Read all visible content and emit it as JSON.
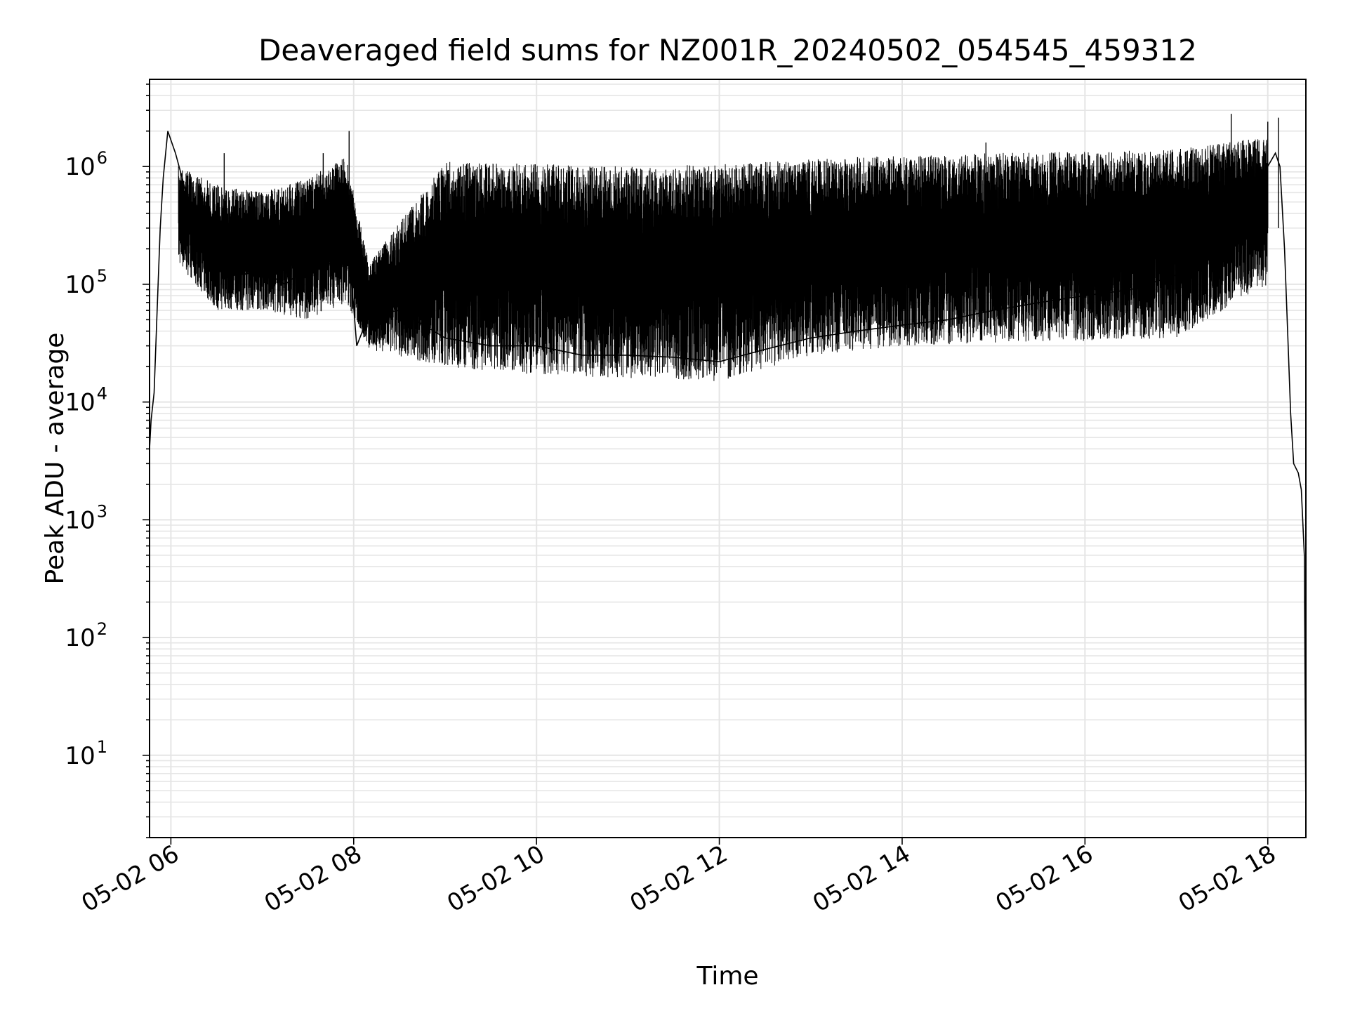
{
  "chart_data": {
    "type": "line",
    "title": "Deaveraged field sums for NZ001R_20240502_054545_459312",
    "xlabel": "Time",
    "ylabel": "Peak ADU - average",
    "yscale": "log",
    "ylim": [
      2,
      5500000
    ],
    "xlim": [
      "05-02 05:46",
      "05-02 18:25"
    ],
    "grid": true,
    "line_color": "#000000",
    "grid_color": "#e5e5e5",
    "x_ticks": [
      "05-02 06",
      "05-02 08",
      "05-02 10",
      "05-02 12",
      "05-02 14",
      "05-02 16",
      "05-02 18"
    ],
    "y_ticks": [
      {
        "value": 10,
        "base": "10",
        "exp": "1"
      },
      {
        "value": 100,
        "base": "10",
        "exp": "2"
      },
      {
        "value": 1000,
        "base": "10",
        "exp": "3"
      },
      {
        "value": 10000,
        "base": "10",
        "exp": "4"
      },
      {
        "value": 100000,
        "base": "10",
        "exp": "5"
      },
      {
        "value": 1000000,
        "base": "10",
        "exp": "6"
      }
    ],
    "series": [
      {
        "points": [
          [
            "05-02 05:46",
            4000
          ],
          [
            "05-02 05:47",
            7000
          ],
          [
            "05-02 05:49",
            12000
          ],
          [
            "05-02 05:51",
            60000
          ],
          [
            "05-02 05:53",
            300000
          ],
          [
            "05-02 05:55",
            800000
          ],
          [
            "05-02 05:58",
            2000000
          ],
          [
            "05-02 06:03",
            1300000
          ],
          [
            "05-02 06:10",
            600000
          ],
          [
            "05-02 06:20",
            250000
          ],
          [
            "05-02 06:30",
            180000
          ],
          [
            "05-02 06:45",
            120000
          ],
          [
            "05-02 07:00",
            130000
          ],
          [
            "05-02 07:15",
            100000
          ],
          [
            "05-02 07:30",
            140000
          ],
          [
            "05-02 07:45",
            150000
          ],
          [
            "05-02 07:57",
            200000
          ],
          [
            "05-02 08:02",
            30000
          ],
          [
            "05-02 08:10",
            55000
          ],
          [
            "05-02 08:30",
            60000
          ],
          [
            "05-02 09:00",
            35000
          ],
          [
            "05-02 09:30",
            30000
          ],
          [
            "05-02 10:00",
            30000
          ],
          [
            "05-02 10:30",
            25000
          ],
          [
            "05-02 11:00",
            25000
          ],
          [
            "05-02 11:30",
            24000
          ],
          [
            "05-02 12:00",
            22000
          ],
          [
            "05-02 12:30",
            28000
          ],
          [
            "05-02 13:00",
            35000
          ],
          [
            "05-02 13:30",
            40000
          ],
          [
            "05-02 14:00",
            45000
          ],
          [
            "05-02 14:30",
            50000
          ],
          [
            "05-02 15:00",
            60000
          ],
          [
            "05-02 15:30",
            70000
          ],
          [
            "05-02 16:00",
            80000
          ],
          [
            "05-02 16:30",
            90000
          ],
          [
            "05-02 17:00",
            120000
          ],
          [
            "05-02 17:30",
            200000
          ],
          [
            "05-02 17:50",
            600000
          ],
          [
            "05-02 18:05",
            1300000
          ],
          [
            "05-02 18:08",
            1000000
          ],
          [
            "05-02 18:11",
            200000
          ],
          [
            "05-02 18:13",
            40000
          ],
          [
            "05-02 18:15",
            8000
          ],
          [
            "05-02 18:17",
            3000
          ],
          [
            "05-02 18:20",
            2500
          ],
          [
            "05-02 18:22",
            1800
          ],
          [
            "05-02 18:24",
            500
          ],
          [
            "05-02 18:25",
            3
          ]
        ],
        "upper_envelope": [
          [
            "05-02 06:05",
            1000000
          ],
          [
            "05-02 06:30",
            700000
          ],
          [
            "05-02 07:00",
            600000
          ],
          [
            "05-02 07:30",
            800000
          ],
          [
            "05-02 07:55",
            1200000
          ],
          [
            "05-02 08:10",
            150000
          ],
          [
            "05-02 09:00",
            1100000
          ],
          [
            "05-02 10:00",
            1050000
          ],
          [
            "05-02 11:00",
            1000000
          ],
          [
            "05-02 12:00",
            1050000
          ],
          [
            "05-02 13:00",
            1150000
          ],
          [
            "05-02 14:00",
            1250000
          ],
          [
            "05-02 15:00",
            1300000
          ],
          [
            "05-02 16:00",
            1350000
          ],
          [
            "05-02 17:00",
            1400000
          ],
          [
            "05-02 18:00",
            1800000
          ]
        ],
        "lower_envelope": [
          [
            "05-02 06:05",
            150000
          ],
          [
            "05-02 06:30",
            60000
          ],
          [
            "05-02 07:00",
            60000
          ],
          [
            "05-02 07:30",
            50000
          ],
          [
            "05-02 07:55",
            70000
          ],
          [
            "05-02 08:10",
            28000
          ],
          [
            "05-02 09:00",
            20000
          ],
          [
            "05-02 10:00",
            17000
          ],
          [
            "05-02 11:00",
            16000
          ],
          [
            "05-02 12:00",
            15000
          ],
          [
            "05-02 13:00",
            25000
          ],
          [
            "05-02 14:00",
            30000
          ],
          [
            "05-02 15:00",
            32000
          ],
          [
            "05-02 16:00",
            33000
          ],
          [
            "05-02 17:00",
            35000
          ],
          [
            "05-02 18:00",
            100000
          ]
        ],
        "spikes": [
          [
            "05-02 06:35",
            1300000
          ],
          [
            "05-02 07:40",
            1300000
          ],
          [
            "05-02 07:57",
            2000000
          ],
          [
            "05-02 14:55",
            1600000
          ],
          [
            "05-02 17:36",
            2800000
          ],
          [
            "05-02 18:00",
            2400000
          ],
          [
            "05-02 18:07",
            2600000
          ]
        ]
      }
    ]
  }
}
